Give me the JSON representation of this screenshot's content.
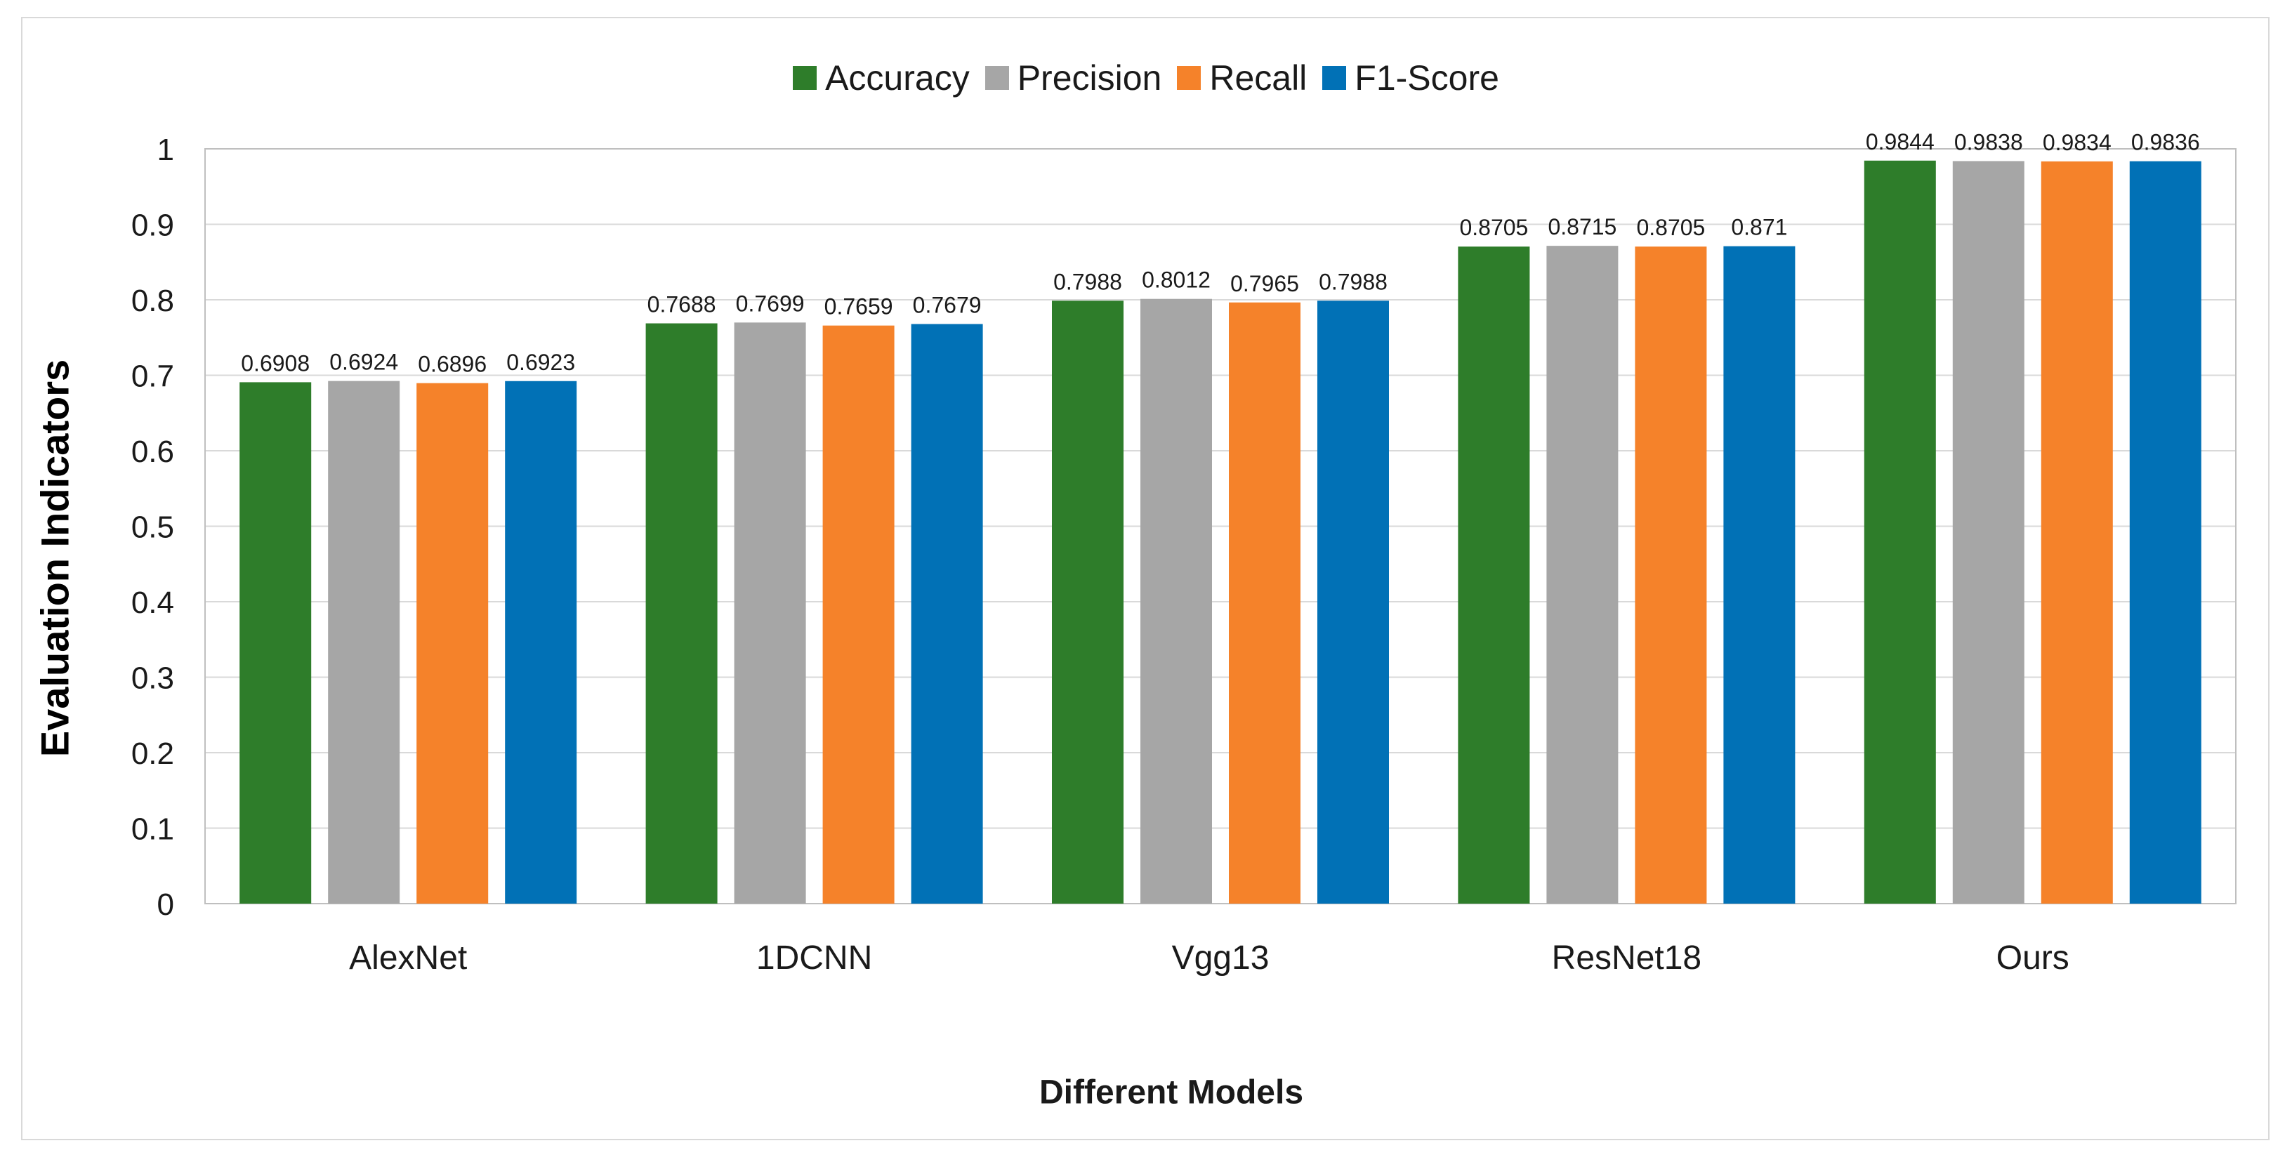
{
  "chart_data": {
    "type": "bar",
    "title": "",
    "xlabel": "Different Models",
    "ylabel": "Evaluation Indicators",
    "categories": [
      "AlexNet",
      "1DCNN",
      "Vgg13",
      "ResNet18",
      "Ours"
    ],
    "ylim": [
      0,
      1
    ],
    "yticks": [
      "0",
      "0.1",
      "0.2",
      "0.3",
      "0.4",
      "0.5",
      "0.6",
      "0.7",
      "0.8",
      "0.9",
      "1"
    ],
    "grid": true,
    "legend_position": "top-center",
    "series": [
      {
        "name": "Accuracy",
        "color": "#2e7d2a",
        "values": [
          0.6908,
          0.7688,
          0.7988,
          0.8705,
          0.9844
        ]
      },
      {
        "name": "Precision",
        "color": "#a6a6a6",
        "values": [
          0.6924,
          0.7699,
          0.8012,
          0.8715,
          0.9838
        ]
      },
      {
        "name": "Recall",
        "color": "#f5822a",
        "values": [
          0.6896,
          0.7659,
          0.7965,
          0.8705,
          0.9834
        ]
      },
      {
        "name": "F1-Score",
        "color": "#0171b6",
        "values": [
          0.6923,
          0.7679,
          0.7988,
          0.871,
          0.9836
        ]
      }
    ]
  }
}
